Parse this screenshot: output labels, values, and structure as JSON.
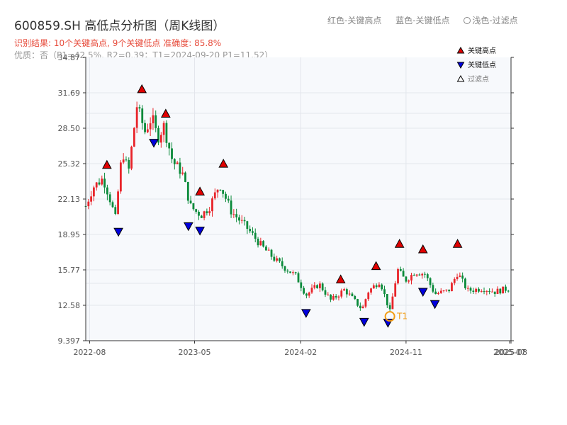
{
  "title": "600859.SH 高低点分析图（周K线图）",
  "legend_top": {
    "red": "红色-关键高点",
    "blue": "蓝色-关键低点",
    "light": "浅色-过滤点"
  },
  "result_line": "识别结果: 10个关键高点, 9个关键低点  准确度: 85.8%",
  "quality_line": "优质：否（P1=42.5%, R2=0.39；T1=2024-09-20 P1=11.52）",
  "colors": {
    "up": "#e8242a",
    "down": "#0a8a3a",
    "high": "#e00000",
    "low": "#0000dd",
    "t1": "#f39c12"
  },
  "chart_data": {
    "type": "candlestick",
    "x_tick_labels": [
      "2022-08",
      "2023-05",
      "2024-02",
      "2024-11",
      "2025-07",
      "2025-08"
    ],
    "y_tick_labels": [
      "9.397",
      "12.58",
      "15.77",
      "18.95",
      "22.13",
      "25.32",
      "28.50",
      "31.69",
      "34.87"
    ],
    "ylim": [
      9.397,
      34.87
    ],
    "grid": true,
    "legend": [
      "关键高点",
      "关键低点",
      "过滤点"
    ],
    "legend_position": "top-right",
    "key_highs": [
      {
        "date": "2022-09",
        "value": 24.7
      },
      {
        "date": "2022-12",
        "value": 31.5
      },
      {
        "date": "2023-02",
        "value": 29.3
      },
      {
        "date": "2023-05",
        "value": 22.3
      },
      {
        "date": "2023-07",
        "value": 24.8
      },
      {
        "date": "2024-05",
        "value": 14.4
      },
      {
        "date": "2024-08",
        "value": 15.6
      },
      {
        "date": "2024-10",
        "value": 17.6
      },
      {
        "date": "2024-12",
        "value": 17.1
      },
      {
        "date": "2025-03",
        "value": 17.6
      }
    ],
    "key_lows": [
      {
        "date": "2022-10",
        "value": 19.7
      },
      {
        "date": "2023-01",
        "value": 27.7
      },
      {
        "date": "2023-04",
        "value": 20.2
      },
      {
        "date": "2023-05",
        "value": 19.8
      },
      {
        "date": "2024-02",
        "value": 12.4
      },
      {
        "date": "2024-07",
        "value": 11.6
      },
      {
        "date": "2024-09",
        "value": 11.52
      },
      {
        "date": "2024-12",
        "value": 14.3
      },
      {
        "date": "2025-01",
        "value": 13.2
      }
    ],
    "t1_label": "T1",
    "t1": {
      "date": "2024-09-20",
      "value": 11.52
    }
  }
}
